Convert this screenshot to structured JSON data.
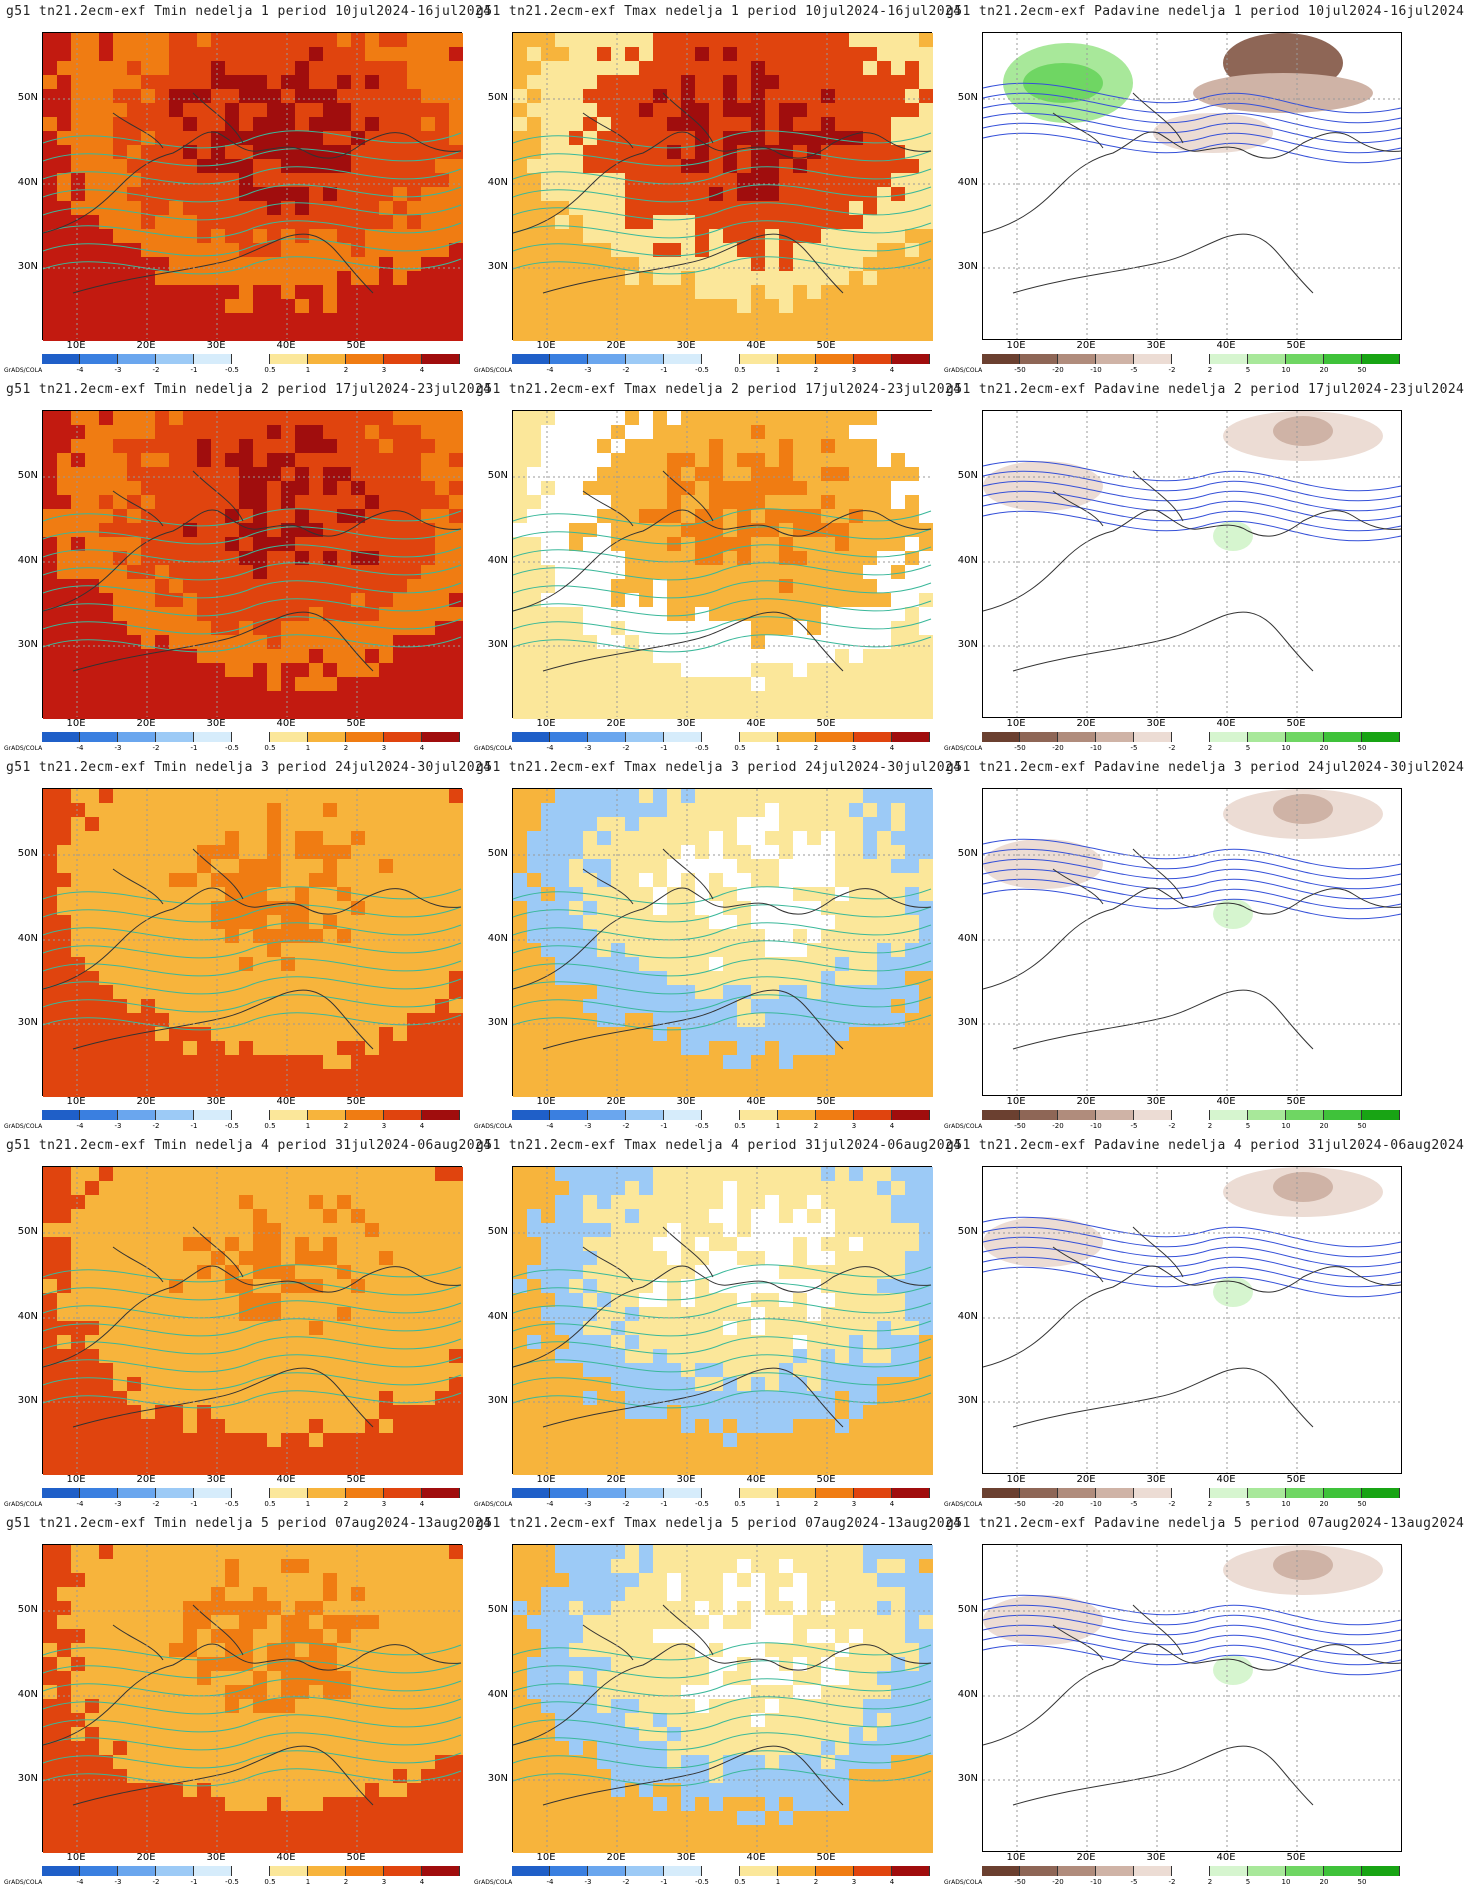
{
  "credit": "GrADS/COLA",
  "lat_labels": [
    "50N",
    "40N",
    "30N"
  ],
  "lon_labels": [
    "10E",
    "20E",
    "30E",
    "40E",
    "50E"
  ],
  "colorbars": {
    "temperature": {
      "ticks": [
        "-4",
        "-3",
        "-2",
        "-1",
        "-0.5",
        "0.5",
        "1",
        "2",
        "3",
        "4"
      ],
      "colors": [
        "#1f5fc8",
        "#3a7fe0",
        "#6aa6ee",
        "#9ccaf6",
        "#d6ecfb",
        "#ffffff",
        "#fbe79a",
        "#f7b43c",
        "#f07c12",
        "#e0440e",
        "#a00d0d"
      ]
    },
    "precipitation": {
      "ticks": [
        "-50",
        "-20",
        "-10",
        "-5",
        "-2",
        "2",
        "5",
        "10",
        "20",
        "50"
      ],
      "colors": [
        "#6b4030",
        "#8e6656",
        "#b08c7c",
        "#cfb3a6",
        "#ecdcd4",
        "#ffffff",
        "#d6f5cf",
        "#a8e89a",
        "#6fd663",
        "#3fc23a",
        "#18a414"
      ]
    }
  },
  "panels": [
    {
      "title": "g51 tn21.2ecm-exf Tmin nedelja 1 period 10jul2024-16jul2024",
      "var": "tmin",
      "scheme": "hot"
    },
    {
      "title": "g51 tn21.2ecm-exf Tmax nedelja 1 period 10jul2024-16jul2024",
      "var": "tmax",
      "scheme": "hotmix"
    },
    {
      "title": "g51 tn21.2ecm-exf Padavine nedelja 1 period 10jul2024-16jul2024",
      "var": "precip",
      "scheme": "precip1"
    },
    {
      "title": "g51 tn21.2ecm-exf Tmin nedelja 2 period 17jul2024-23jul2024",
      "var": "tmin",
      "scheme": "hot"
    },
    {
      "title": "g51 tn21.2ecm-exf Tmax nedelja 2 period 17jul2024-23jul2024",
      "var": "tmax",
      "scheme": "mix"
    },
    {
      "title": "g51 tn21.2ecm-exf Padavine nedelja 2 period 17jul2024-23jul2024",
      "var": "precip",
      "scheme": "precip"
    },
    {
      "title": "g51 tn21.2ecm-exf Tmin nedelja 3 period 24jul2024-30jul2024",
      "var": "tmin",
      "scheme": "warm"
    },
    {
      "title": "g51 tn21.2ecm-exf Tmax nedelja 3 period 24jul2024-30jul2024",
      "var": "tmax",
      "scheme": "cool"
    },
    {
      "title": "g51 tn21.2ecm-exf Padavine nedelja 3 period 24jul2024-30jul2024",
      "var": "precip",
      "scheme": "precip"
    },
    {
      "title": "g51 tn21.2ecm-exf Tmin nedelja 4 period 31jul2024-06aug2024",
      "var": "tmin",
      "scheme": "warm"
    },
    {
      "title": "g51 tn21.2ecm-exf Tmax nedelja 4 period 31jul2024-06aug2024",
      "var": "tmax",
      "scheme": "cool"
    },
    {
      "title": "g51 tn21.2ecm-exf Padavine nedelja 4 period 31jul2024-06aug2024",
      "var": "precip",
      "scheme": "precip"
    },
    {
      "title": "g51 tn21.2ecm-exf Tmin nedelja 5 period 07aug2024-13aug2024",
      "var": "tmin",
      "scheme": "warm"
    },
    {
      "title": "g51 tn21.2ecm-exf Tmax nedelja 5 period 07aug2024-13aug2024",
      "var": "tmax",
      "scheme": "cool"
    },
    {
      "title": "g51 tn21.2ecm-exf Padavine nedelja 5 period 07aug2024-13aug2024",
      "var": "precip",
      "scheme": "precip"
    }
  ]
}
